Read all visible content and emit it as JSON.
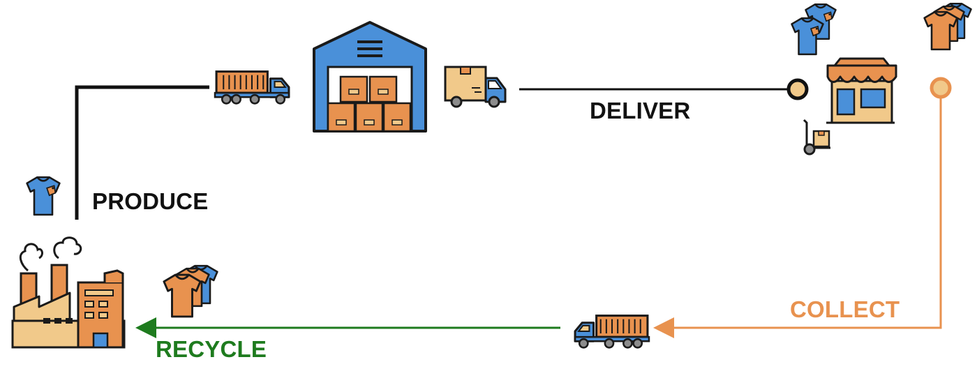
{
  "diagram": {
    "labels": {
      "produce": "PRODUCE",
      "deliver": "DELIVER",
      "collect": "COLLECT",
      "recycle": "RECYCLE"
    },
    "colors": {
      "produce_line": "#111111",
      "deliver_line": "#111111",
      "collect_line": "#E8924F",
      "recycle_line": "#1E7B1E",
      "blue": "#4A90D9",
      "orange": "#E8924F",
      "tan": "#F1C98A",
      "outline": "#1a1a1a"
    },
    "icons": [
      "shirt-icon",
      "factory-icon",
      "container-truck-icon",
      "warehouse-icon",
      "delivery-van-icon",
      "shirt-stack-icon",
      "store-icon",
      "hand-trolley-icon",
      "used-shirts-icon"
    ]
  }
}
